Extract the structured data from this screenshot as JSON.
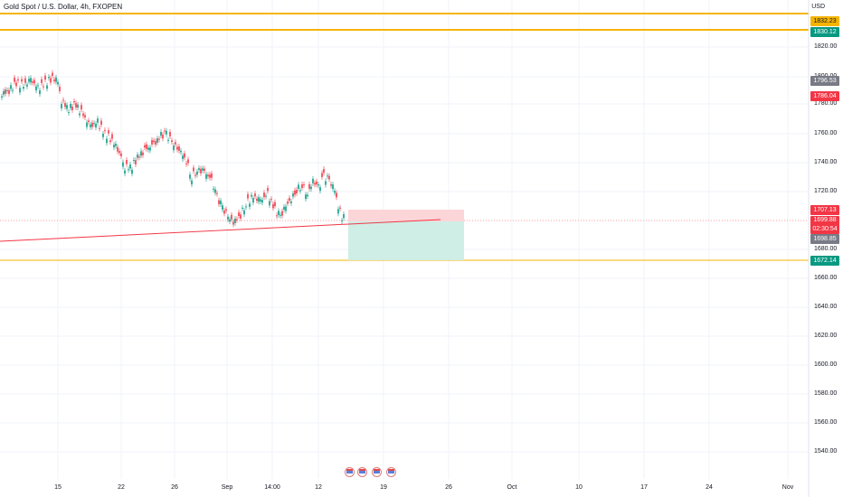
{
  "header": {
    "title": "Gold Spot / U.S. Dollar, 4h, FXOPEN",
    "currency": "USD"
  },
  "axis": {
    "y_ticks": [
      "1820.00",
      "1800.00",
      "1780.00",
      "1760.00",
      "1740.00",
      "1720.00",
      "1680.00",
      "1660.00",
      "1640.00",
      "1620.00",
      "1600.00",
      "1580.00",
      "1560.00",
      "1540.00"
    ],
    "x_ticks": [
      "15",
      "22",
      "26",
      "Sep",
      "14:00",
      "12",
      "19",
      "26",
      "Oct",
      "10",
      "17",
      "24",
      "Nov"
    ]
  },
  "price_labels": {
    "level_1": "1832.23",
    "level_2": "1830.12",
    "level_3": "1796.53",
    "level_4": "1786.04",
    "stop_loss": "1707.13",
    "last_price": "1699.88",
    "countdown": "02:30:54",
    "entry": "1698.85",
    "take_profit": "1672.14"
  },
  "colors": {
    "level_line": "#f5b400",
    "up_candle": "#089981",
    "down_candle": "#f23645",
    "trendline": "#f23645",
    "stop_zone": "#fcd5d8",
    "target_zone": "#cfeee6",
    "level_badge": "#f5b400",
    "tp_badge": "#089981",
    "gray_badge": "#787b86"
  },
  "events": {
    "icons": [
      "us-flag-icon",
      "us-flag-icon",
      "us-flag-icon",
      "us-flag-icon"
    ]
  }
}
